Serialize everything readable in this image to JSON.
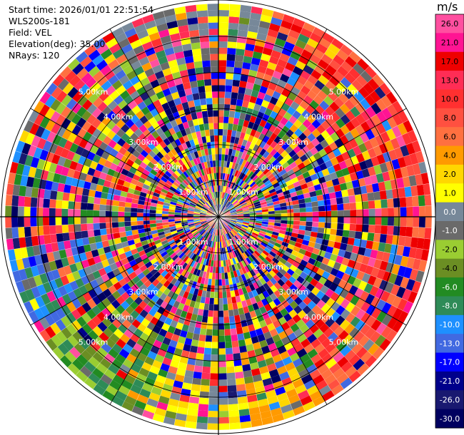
{
  "info": {
    "start_time": "Start time: 2026/01/01 22:51:54",
    "instrument": "WLS200s-181",
    "field": "Field: VEL",
    "elevation": "Elevation(deg): 35.00",
    "nrays": "NRays: 120"
  },
  "colorbar": {
    "unit": "m/s",
    "ticks": [
      "26.0",
      "21.0",
      "17.0",
      "13.0",
      "10.0",
      "8.0",
      "6.0",
      "4.0",
      "2.0",
      "1.0",
      "0.0",
      "-1.0",
      "-2.0",
      "-4.0",
      "-6.0",
      "-8.0",
      "-10.0",
      "-13.0",
      "-17.0",
      "-21.0",
      "-26.0",
      "-30.0"
    ],
    "colors": [
      "#ff4fa0",
      "#ff1493",
      "#ee0000",
      "#ff2d55",
      "#ff3030",
      "#ff5040",
      "#ff7040",
      "#ff9a00",
      "#ffd700",
      "#ffff00",
      "#778899",
      "#6a6a6a",
      "#9acd32",
      "#6b8e23",
      "#228b22",
      "#2e8b57",
      "#1e90ff",
      "#4169e1",
      "#0000ff",
      "#00008b",
      "#191970",
      "#000060"
    ]
  },
  "chart_data": {
    "type": "ppi",
    "field": "VEL",
    "nrays": 120,
    "elevation_deg": 35.0,
    "range_rings_km": [
      1,
      2,
      3,
      4,
      5
    ],
    "ring_labels": [
      "1.00km",
      "2.00km",
      "3.00km",
      "4.00km",
      "5.00km"
    ],
    "gate_range_km": [
      0,
      6.2
    ]
  }
}
